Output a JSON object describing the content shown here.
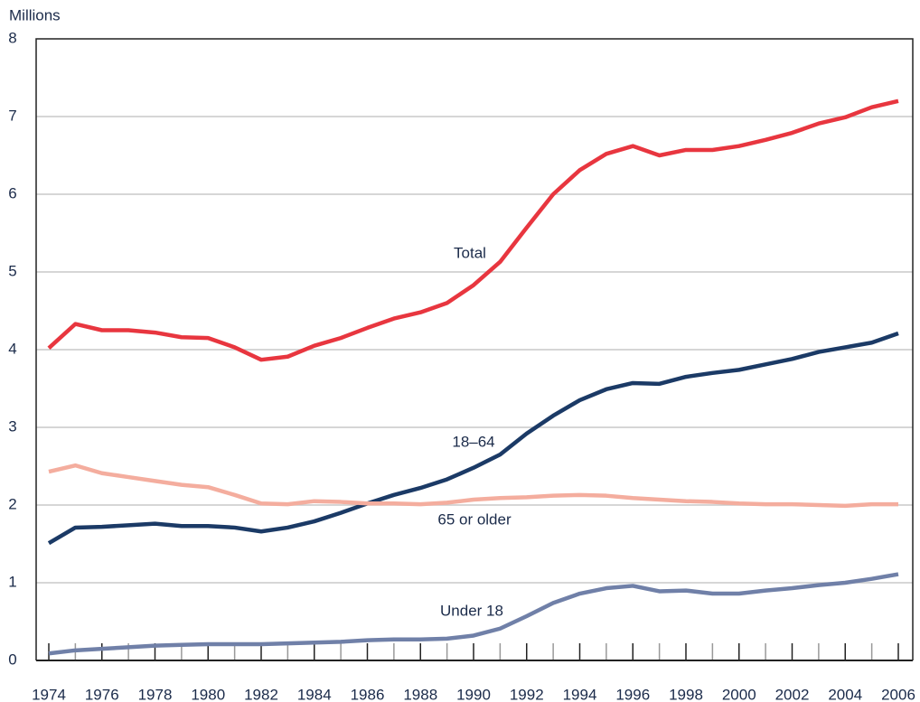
{
  "chart_data": {
    "type": "line",
    "y_label": "Millions",
    "categories": [
      "1974",
      null,
      "1976",
      null,
      "1978",
      null,
      "1980",
      null,
      "1982",
      null,
      "1984",
      null,
      "1986",
      null,
      "1988",
      null,
      "1990",
      null,
      "1992",
      null,
      "1994",
      null,
      "1996",
      null,
      "1998",
      null,
      "2000",
      null,
      "2002",
      null,
      "2004",
      null,
      "2006"
    ],
    "ylim": [
      0,
      8
    ],
    "yticks": [
      0,
      1,
      2,
      3,
      4,
      5,
      6,
      7,
      8
    ],
    "grid": true,
    "series": [
      {
        "name": "Total",
        "color": "#e8363f",
        "values": [
          4.02,
          4.33,
          4.25,
          4.25,
          4.22,
          4.16,
          4.15,
          4.03,
          3.87,
          3.91,
          4.05,
          4.15,
          4.28,
          4.4,
          4.48,
          4.6,
          4.83,
          5.13,
          5.57,
          6.0,
          6.31,
          6.52,
          6.62,
          6.5,
          6.57,
          6.57,
          6.62,
          6.7,
          6.79,
          6.91,
          6.99,
          7.12,
          7.2
        ]
      },
      {
        "name": "18–64",
        "color": "#1b3a66",
        "values": [
          1.51,
          1.71,
          1.72,
          1.74,
          1.76,
          1.73,
          1.73,
          1.71,
          1.66,
          1.71,
          1.79,
          1.9,
          2.02,
          2.13,
          2.22,
          2.33,
          2.48,
          2.65,
          2.92,
          3.15,
          3.35,
          3.49,
          3.57,
          3.56,
          3.65,
          3.7,
          3.74,
          3.81,
          3.88,
          3.97,
          4.03,
          4.09,
          4.21
        ]
      },
      {
        "name": "65 or older",
        "color": "#f4ad9e",
        "values": [
          2.43,
          2.51,
          2.41,
          2.36,
          2.31,
          2.26,
          2.23,
          2.13,
          2.02,
          2.01,
          2.05,
          2.04,
          2.02,
          2.02,
          2.01,
          2.03,
          2.07,
          2.09,
          2.1,
          2.12,
          2.13,
          2.12,
          2.09,
          2.07,
          2.05,
          2.04,
          2.02,
          2.01,
          2.01,
          2.0,
          1.99,
          2.01,
          2.01
        ]
      },
      {
        "name": "Under 18",
        "color": "#7080a8",
        "values": [
          0.09,
          0.13,
          0.15,
          0.17,
          0.19,
          0.2,
          0.21,
          0.21,
          0.21,
          0.22,
          0.23,
          0.24,
          0.26,
          0.27,
          0.27,
          0.28,
          0.32,
          0.41,
          0.57,
          0.74,
          0.86,
          0.93,
          0.96,
          0.89,
          0.9,
          0.86,
          0.86,
          0.9,
          0.93,
          0.97,
          1.0,
          1.05,
          1.11
        ]
      }
    ]
  }
}
